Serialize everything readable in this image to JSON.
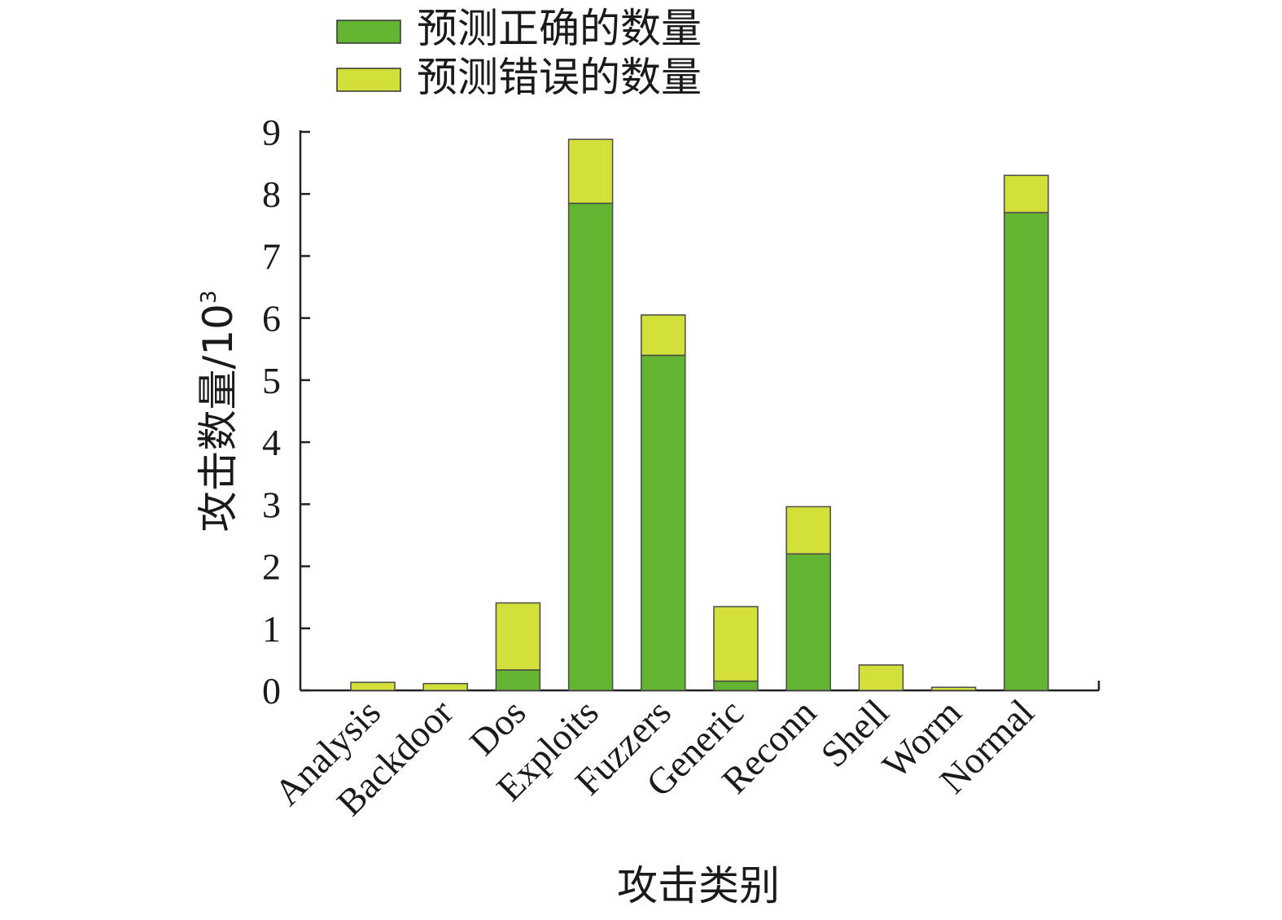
{
  "chart_data": {
    "type": "bar",
    "stacked": true,
    "categories": [
      "Analysis",
      "Backdoor",
      "Dos",
      "Exploits",
      "Fuzzers",
      "Generic",
      "Reconn",
      "Shell",
      "Worm",
      "Normal"
    ],
    "series": [
      {
        "name": "预测正确的数量",
        "color": "#63b531",
        "values": [
          0.0,
          0.0,
          0.33,
          7.85,
          5.4,
          0.15,
          2.2,
          0.0,
          0.0,
          7.7
        ]
      },
      {
        "name": "预测错误的数量",
        "color": "#d4e03a",
        "values": [
          0.13,
          0.11,
          1.08,
          1.03,
          0.65,
          1.2,
          0.76,
          0.41,
          0.05,
          0.6
        ]
      }
    ],
    "yticks": [
      "0",
      "1",
      "2",
      "3",
      "4",
      "5",
      "6",
      "7",
      "8",
      "9"
    ],
    "ylim": [
      0,
      9
    ],
    "xlabel": "攻击类别",
    "ylabel": "攻击数量/10",
    "ylabel_sup": "3",
    "legend_position": "top"
  }
}
